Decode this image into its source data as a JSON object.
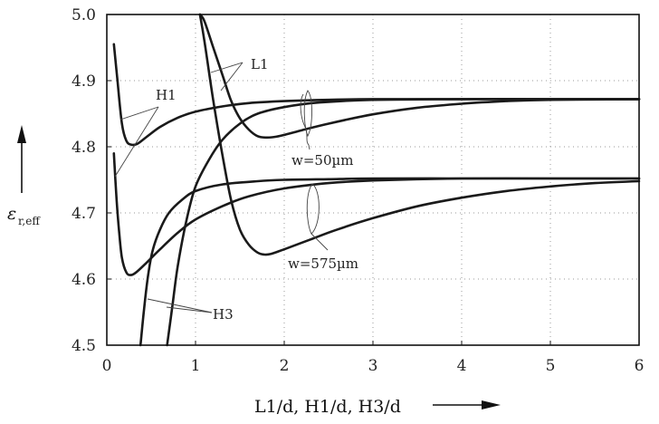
{
  "chart_data": {
    "type": "line",
    "title": "",
    "xlabel": "L1/d, H1/d, H3/d",
    "ylabel": "ε",
    "ylabel_sub": "r,eff",
    "xlim": [
      0,
      6
    ],
    "ylim": [
      4.5,
      5.0
    ],
    "x_ticks": [
      0,
      1,
      2,
      3,
      4,
      5,
      6
    ],
    "x_tick_labels": [
      "0",
      "1",
      "2",
      "3",
      "4",
      "5",
      "6"
    ],
    "y_ticks": [
      4.5,
      4.6,
      4.7,
      4.8,
      4.9,
      5.0
    ],
    "y_tick_labels": [
      "4.5",
      "4.6",
      "4.7",
      "4.8",
      "4.9",
      "5.0"
    ],
    "grid": true,
    "series": [
      {
        "name": "H1",
        "group": "w=50µm",
        "points": [
          [
            0.08,
            4.955
          ],
          [
            0.12,
            4.9
          ],
          [
            0.17,
            4.835
          ],
          [
            0.22,
            4.809
          ],
          [
            0.28,
            4.803
          ],
          [
            0.35,
            4.805
          ],
          [
            0.45,
            4.815
          ],
          [
            0.6,
            4.83
          ],
          [
            0.8,
            4.844
          ],
          [
            1.0,
            4.853
          ],
          [
            1.3,
            4.861
          ],
          [
            1.6,
            4.866
          ],
          [
            2.0,
            4.869
          ],
          [
            2.5,
            4.871
          ],
          [
            3.0,
            4.872
          ],
          [
            4.0,
            4.872
          ],
          [
            5.0,
            4.872
          ],
          [
            6.0,
            4.872
          ]
        ]
      },
      {
        "name": "H3",
        "group": "w=50µm",
        "points": [
          [
            0.68,
            4.5
          ],
          [
            0.74,
            4.56
          ],
          [
            0.8,
            4.62
          ],
          [
            0.9,
            4.69
          ],
          [
            1.0,
            4.74
          ],
          [
            1.15,
            4.78
          ],
          [
            1.3,
            4.81
          ],
          [
            1.5,
            4.835
          ],
          [
            1.7,
            4.85
          ],
          [
            2.0,
            4.86
          ],
          [
            2.4,
            4.867
          ],
          [
            3.0,
            4.871
          ],
          [
            4.0,
            4.872
          ],
          [
            5.0,
            4.872
          ],
          [
            6.0,
            4.872
          ]
        ]
      },
      {
        "name": "L1",
        "group": "w=50µm",
        "points": [
          [
            1.05,
            5.0
          ],
          [
            1.1,
            4.99
          ],
          [
            1.2,
            4.95
          ],
          [
            1.3,
            4.91
          ],
          [
            1.4,
            4.87
          ],
          [
            1.5,
            4.843
          ],
          [
            1.6,
            4.826
          ],
          [
            1.7,
            4.816
          ],
          [
            1.8,
            4.814
          ],
          [
            1.9,
            4.815
          ],
          [
            2.0,
            4.818
          ],
          [
            2.2,
            4.825
          ],
          [
            2.5,
            4.835
          ],
          [
            3.0,
            4.849
          ],
          [
            3.5,
            4.859
          ],
          [
            4.0,
            4.865
          ],
          [
            4.5,
            4.869
          ],
          [
            5.0,
            4.871
          ],
          [
            6.0,
            4.872
          ]
        ]
      },
      {
        "name": "H1",
        "group": "w=575µm",
        "points": [
          [
            0.08,
            4.79
          ],
          [
            0.11,
            4.72
          ],
          [
            0.14,
            4.67
          ],
          [
            0.17,
            4.632
          ],
          [
            0.22,
            4.61
          ],
          [
            0.27,
            4.606
          ],
          [
            0.33,
            4.61
          ],
          [
            0.45,
            4.625
          ],
          [
            0.6,
            4.645
          ],
          [
            0.8,
            4.67
          ],
          [
            1.0,
            4.69
          ],
          [
            1.3,
            4.71
          ],
          [
            1.6,
            4.725
          ],
          [
            2.0,
            4.737
          ],
          [
            2.5,
            4.745
          ],
          [
            3.0,
            4.749
          ],
          [
            4.0,
            4.752
          ],
          [
            5.0,
            4.752
          ],
          [
            6.0,
            4.752
          ]
        ]
      },
      {
        "name": "H3",
        "group": "w=575µm",
        "points": [
          [
            0.38,
            4.5
          ],
          [
            0.42,
            4.555
          ],
          [
            0.47,
            4.61
          ],
          [
            0.52,
            4.645
          ],
          [
            0.6,
            4.675
          ],
          [
            0.7,
            4.7
          ],
          [
            0.85,
            4.72
          ],
          [
            1.0,
            4.733
          ],
          [
            1.3,
            4.743
          ],
          [
            1.7,
            4.748
          ],
          [
            2.0,
            4.75
          ],
          [
            2.5,
            4.751
          ],
          [
            3.0,
            4.752
          ],
          [
            4.0,
            4.752
          ],
          [
            5.0,
            4.752
          ],
          [
            6.0,
            4.752
          ]
        ]
      },
      {
        "name": "L1",
        "group": "w=575µm",
        "points": [
          [
            1.05,
            5.0
          ],
          [
            1.1,
            4.96
          ],
          [
            1.2,
            4.87
          ],
          [
            1.3,
            4.79
          ],
          [
            1.4,
            4.72
          ],
          [
            1.5,
            4.675
          ],
          [
            1.6,
            4.652
          ],
          [
            1.7,
            4.64
          ],
          [
            1.78,
            4.637
          ],
          [
            1.85,
            4.638
          ],
          [
            2.0,
            4.645
          ],
          [
            2.3,
            4.66
          ],
          [
            2.6,
            4.675
          ],
          [
            3.0,
            4.692
          ],
          [
            3.5,
            4.71
          ],
          [
            4.0,
            4.723
          ],
          [
            4.5,
            4.733
          ],
          [
            5.0,
            4.74
          ],
          [
            5.5,
            4.745
          ],
          [
            6.0,
            4.748
          ]
        ]
      }
    ],
    "annotations": {
      "l1": "L1",
      "h1": "H1",
      "h3": "H3",
      "w50": "w=50µm",
      "w575": "w=575µm"
    }
  }
}
